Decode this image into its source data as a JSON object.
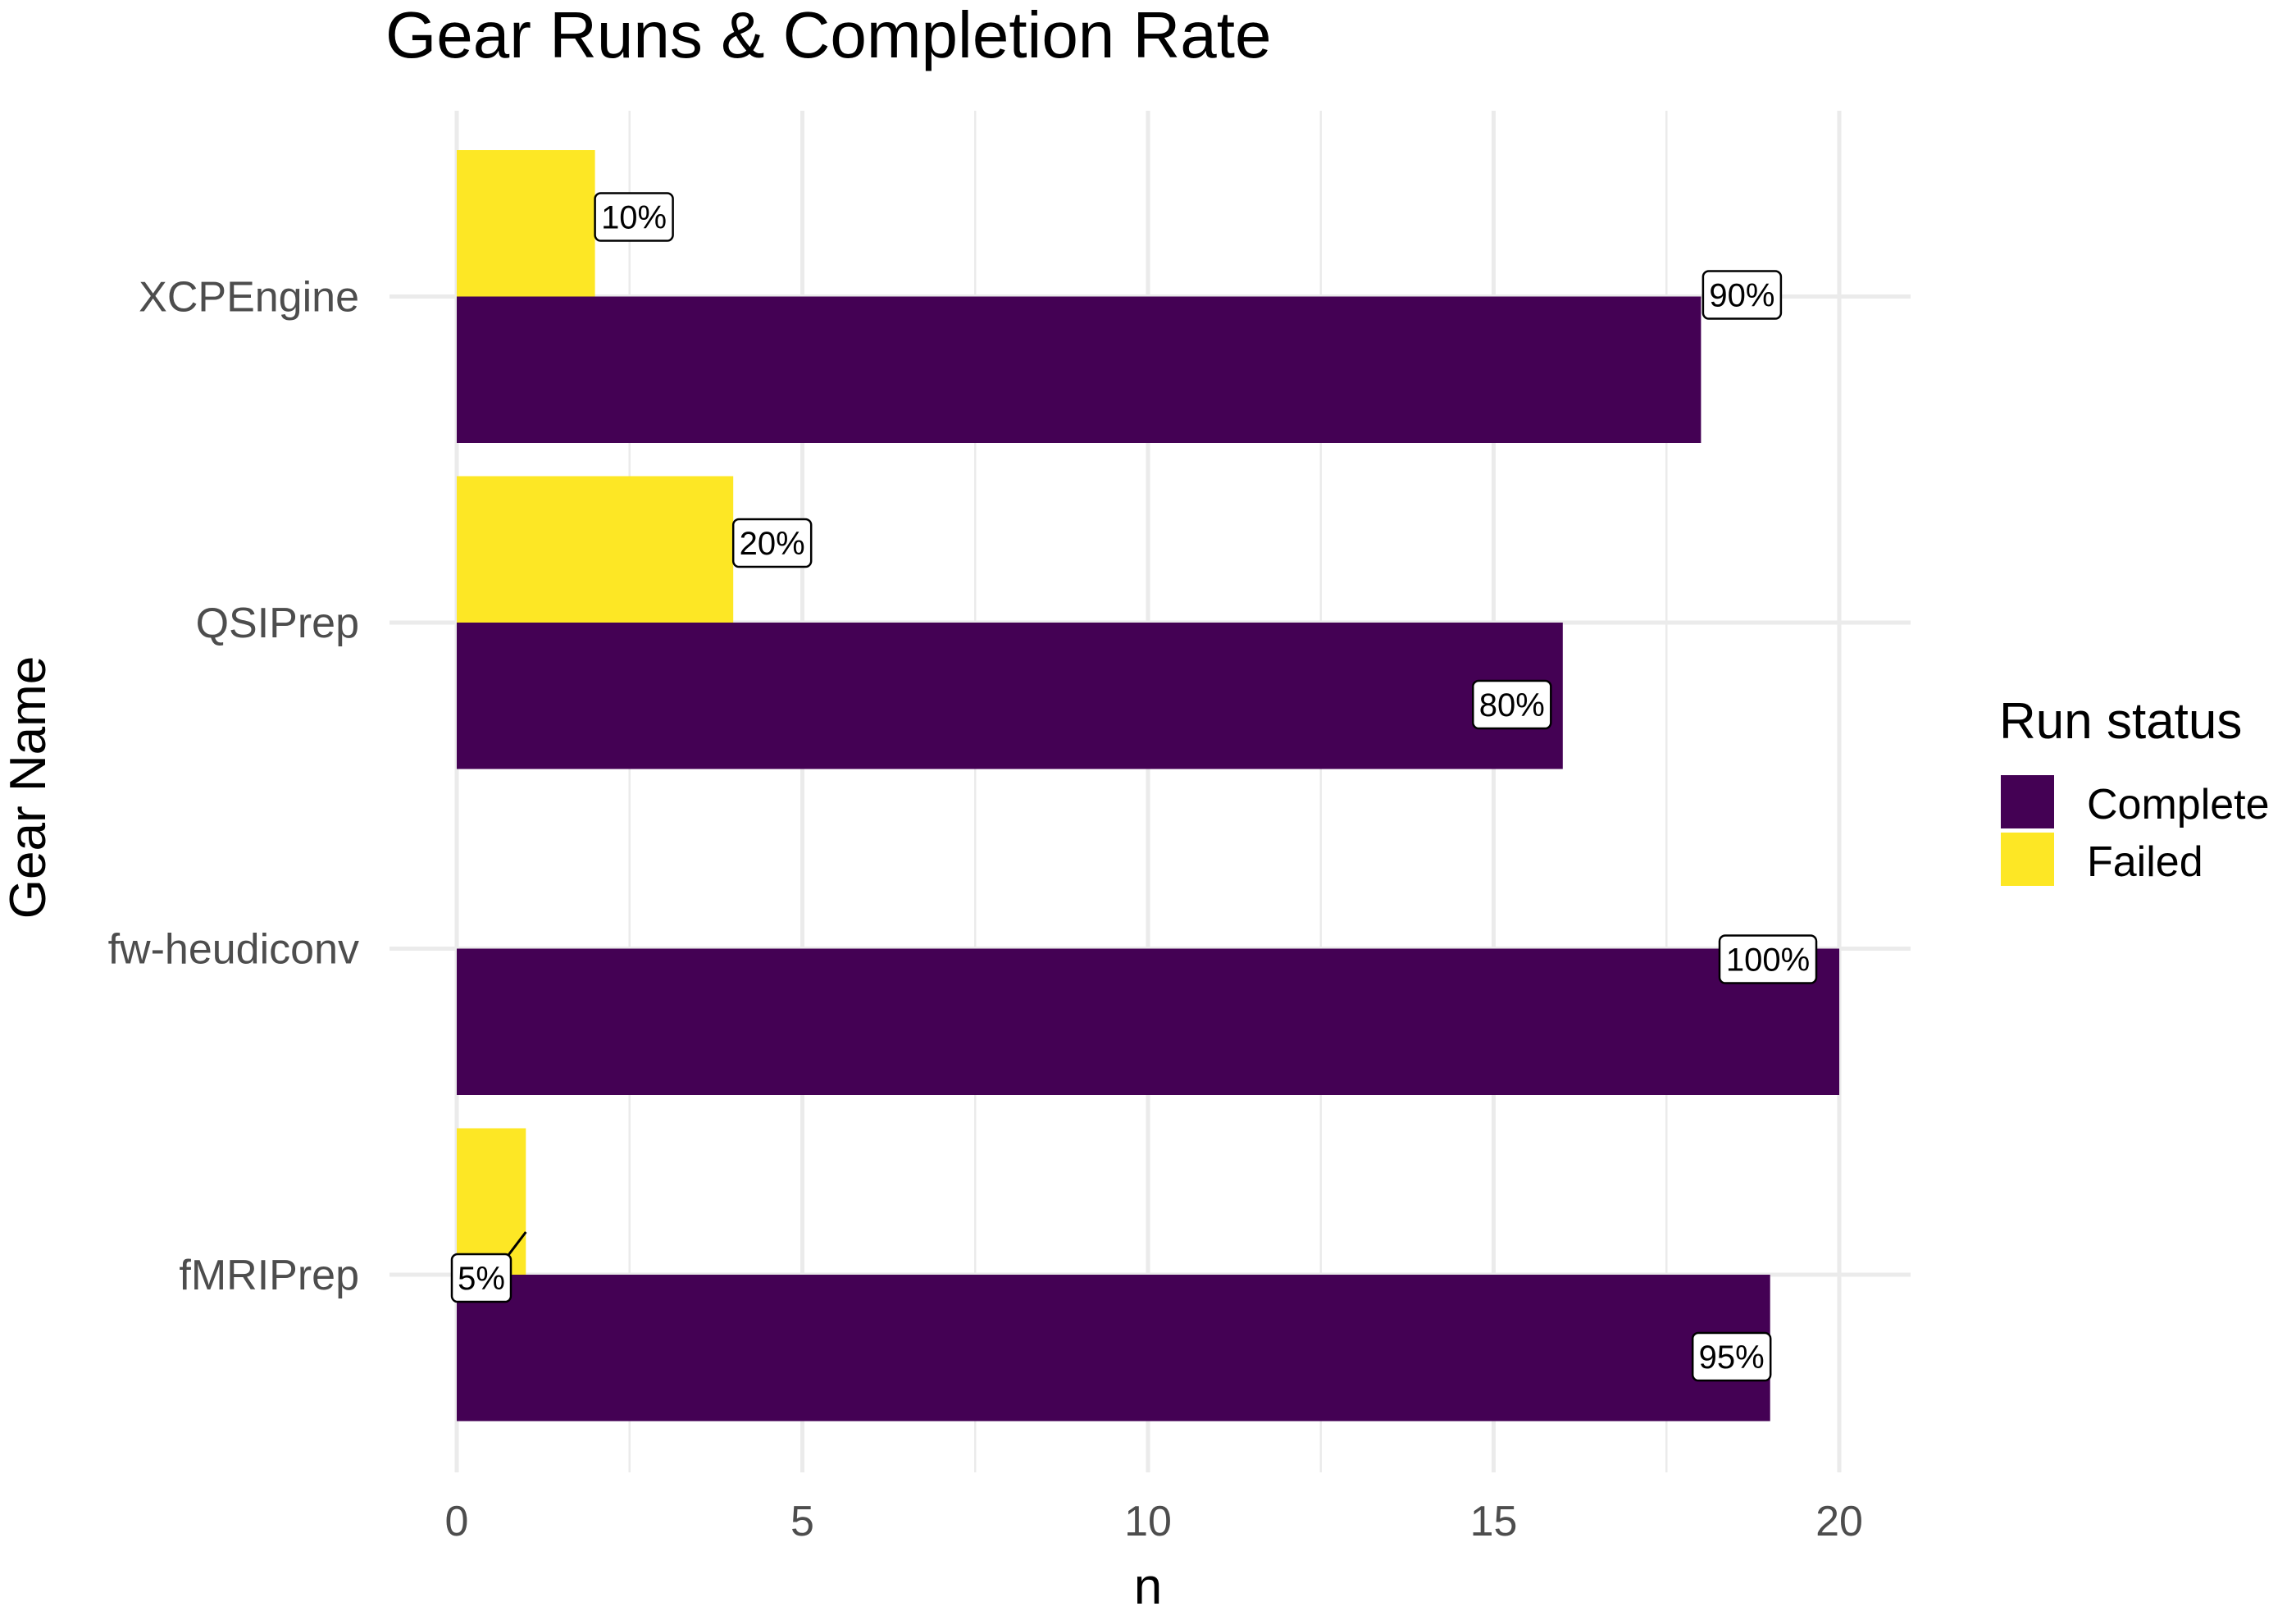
{
  "chart_data": {
    "type": "bar",
    "orientation": "horizontal",
    "title": "Gear Runs & Completion Rate",
    "xlabel": "n",
    "ylabel": "Gear Name",
    "categories": [
      "XCPEngine",
      "QSIPrep",
      "fw-heudiconv",
      "fMRIPrep"
    ],
    "xlim": [
      0,
      21
    ],
    "x_ticks": [
      0,
      5,
      10,
      15,
      20
    ],
    "grid": true,
    "legend": {
      "title": "Run status",
      "position": "right"
    },
    "series": [
      {
        "name": "Complete",
        "color": "#440154",
        "values": [
          18,
          16,
          20,
          19
        ],
        "labels": [
          "90%",
          "80%",
          "100%",
          "95%"
        ]
      },
      {
        "name": "Failed",
        "color": "#FDE725",
        "values": [
          2,
          4,
          0,
          1
        ],
        "labels": [
          "10%",
          "20%",
          "",
          "5%"
        ]
      }
    ]
  }
}
